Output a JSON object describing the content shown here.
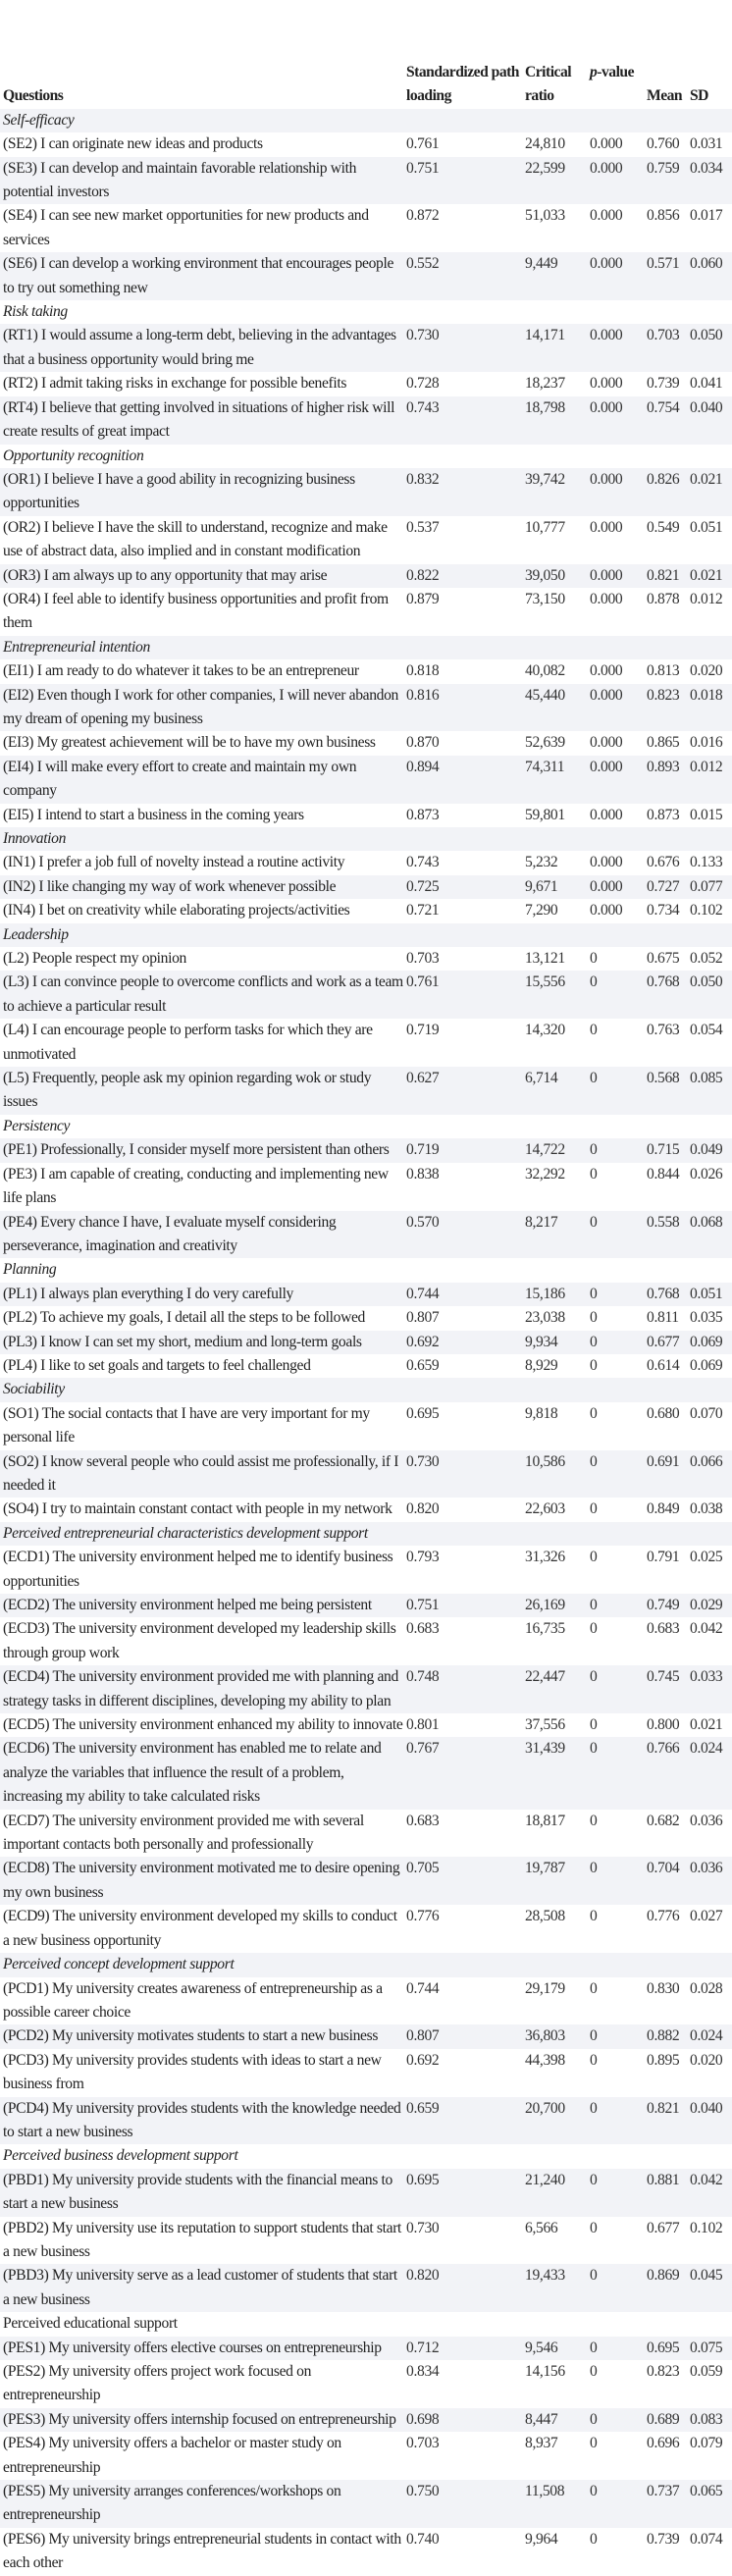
{
  "header": {
    "questions": "Questions",
    "loading": "Standardized path loading",
    "critical": "Critical ratio",
    "p_prefix": "p",
    "p_suffix": "-value",
    "mean": "Mean",
    "sd": "SD"
  },
  "sections": [
    {
      "title": "Self-efficacy",
      "italic": true,
      "items": [
        [
          "(SE2) I can originate new ideas and products",
          "0.761",
          "24,810",
          "0.000",
          "0.760",
          "0.031"
        ],
        [
          "(SE3) I can develop and maintain favorable relationship with potential investors",
          "0.751",
          "22,599",
          "0.000",
          "0.759",
          "0.034"
        ],
        [
          "(SE4) I can see new market opportunities for new products and services",
          "0.872",
          "51,033",
          "0.000",
          "0.856",
          "0.017"
        ],
        [
          "(SE6) I can develop a working environment that encourages people to try out something new",
          "0.552",
          "9,449",
          "0.000",
          "0.571",
          "0.060"
        ]
      ]
    },
    {
      "title": "Risk taking",
      "italic": true,
      "items": [
        [
          "(RT1) I would assume a long-term debt, believing in the advantages that a business opportunity would bring me",
          "0.730",
          "14,171",
          "0.000",
          "0.703",
          "0.050"
        ],
        [
          "(RT2) I admit taking risks in exchange for possible benefits",
          "0.728",
          "18,237",
          "0.000",
          "0.739",
          "0.041"
        ],
        [
          "(RT4) I believe that getting involved in situations of higher risk will create results of great impact",
          "0.743",
          "18,798",
          "0.000",
          "0.754",
          "0.040"
        ]
      ]
    },
    {
      "title": "Opportunity recognition",
      "italic": true,
      "items": [
        [
          "(OR1) I believe I have a good ability in recognizing business opportunities",
          "0.832",
          "39,742",
          "0.000",
          "0.826",
          "0.021"
        ],
        [
          "(OR2) I believe I have the skill to understand, recognize and make use of abstract data, also implied and in constant modification",
          "0.537",
          "10,777",
          "0.000",
          "0.549",
          "0.051"
        ],
        [
          "(OR3) I am always up to any opportunity that may arise",
          "0.822",
          "39,050",
          "0.000",
          "0.821",
          "0.021"
        ],
        [
          "(OR4) I feel able to identify business opportunities and profit from them",
          "0.879",
          "73,150",
          "0.000",
          "0.878",
          "0.012"
        ]
      ]
    },
    {
      "title": "Entrepreneurial intention",
      "italic": true,
      "items": [
        [
          "(EI1) I am ready to do whatever it takes to be an entrepreneur",
          "0.818",
          "40,082",
          "0.000",
          "0.813",
          "0.020"
        ],
        [
          "(EI2) Even though I work for other companies, I will never abandon my dream of opening my business",
          "0.816",
          "45,440",
          "0.000",
          "0.823",
          "0.018"
        ],
        [
          "(EI3) My greatest achievement will be to have my own business",
          "0.870",
          "52,639",
          "0.000",
          "0.865",
          "0.016"
        ],
        [
          "(EI4) I will make every effort to create and maintain my own company",
          "0.894",
          "74,311",
          "0.000",
          "0.893",
          "0.012"
        ],
        [
          "(EI5) I intend to start a business in the coming years",
          "0.873",
          "59,801",
          "0.000",
          "0.873",
          "0.015"
        ]
      ]
    },
    {
      "title": "Innovation",
      "italic": true,
      "items": [
        [
          "(IN1) I prefer a job full of novelty instead a routine activity",
          "0.743",
          "5,232",
          "0.000",
          "0.676",
          "0.133"
        ],
        [
          "(IN2) I like changing my way of work whenever possible",
          "0.725",
          "9,671",
          "0.000",
          "0.727",
          "0.077"
        ],
        [
          "(IN4) I bet on creativity while elaborating projects/activities",
          "0.721",
          "7,290",
          "0.000",
          "0.734",
          "0.102"
        ]
      ]
    },
    {
      "title": "Leadership",
      "italic": true,
      "items": [
        [
          "(L2) People respect my opinion",
          "0.703",
          "13,121",
          "0",
          "0.675",
          "0.052"
        ],
        [
          "(L3) I can convince people to overcome conflicts and work as a team to achieve a particular result",
          "0.761",
          "15,556",
          "0",
          "0.768",
          "0.050"
        ],
        [
          "(L4) I can encourage people to perform tasks for which they are unmotivated",
          "0.719",
          "14,320",
          "0",
          "0.763",
          "0.054"
        ],
        [
          "(L5) Frequently, people ask my opinion regarding wok or study issues",
          "0.627",
          "6,714",
          "0",
          "0.568",
          "0.085"
        ]
      ]
    },
    {
      "title": "Persistency",
      "italic": true,
      "items": [
        [
          "(PE1) Professionally, I consider myself more persistent than others",
          "0.719",
          "14,722",
          "0",
          "0.715",
          "0.049"
        ],
        [
          "(PE3) I am capable of creating, conducting and implementing new life plans",
          "0.838",
          "32,292",
          "0",
          "0.844",
          "0.026"
        ],
        [
          "(PE4) Every chance I have, I evaluate myself considering perseverance, imagination and creativity",
          "0.570",
          "8,217",
          "0",
          "0.558",
          "0.068"
        ]
      ]
    },
    {
      "title": "Planning",
      "italic": true,
      "items": [
        [
          "(PL1) I always plan everything I do very carefully",
          "0.744",
          "15,186",
          "0",
          "0.768",
          "0.051"
        ],
        [
          "(PL2) To achieve my goals, I detail all the steps to be followed",
          "0.807",
          "23,038",
          "0",
          "0.811",
          "0.035"
        ],
        [
          "(PL3) I know I can set my short, medium and long-term goals",
          "0.692",
          "9,934",
          "0",
          "0.677",
          "0.069"
        ],
        [
          "(PL4) I like to set goals and targets to feel challenged",
          "0.659",
          "8,929",
          "0",
          "0.614",
          "0.069"
        ]
      ]
    },
    {
      "title": "Sociability",
      "italic": true,
      "items": [
        [
          "(SO1) The social contacts that I have are very important for my personal life",
          "0.695",
          "9,818",
          "0",
          "0.680",
          "0.070"
        ],
        [
          "(SO2) I know several people who could assist me professionally, if I needed it",
          "0.730",
          "10,586",
          "0",
          "0.691",
          "0.066"
        ],
        [
          "(SO4) I try to maintain constant contact with people in my network",
          "0.820",
          "22,603",
          "0",
          "0.849",
          "0.038"
        ]
      ]
    },
    {
      "title": "Perceived entrepreneurial characteristics development support",
      "italic": true,
      "items": [
        [
          "(ECD1) The university environment helped me to identify business opportunities",
          "0.793",
          "31,326",
          "0",
          "0.791",
          "0.025"
        ],
        [
          "(ECD2) The university environment helped me being persistent",
          "0.751",
          "26,169",
          "0",
          "0.749",
          "0.029"
        ],
        [
          "(ECD3) The university environment developed my leadership skills through group work",
          "0.683",
          "16,735",
          "0",
          "0.683",
          "0.042"
        ],
        [
          "(ECD4) The university environment provided me with planning and strategy tasks in different disciplines, developing my ability to plan",
          "0.748",
          "22,447",
          "0",
          "0.745",
          "0.033"
        ],
        [
          "(ECD5) The university environment enhanced my ability to innovate",
          "0.801",
          "37,556",
          "0",
          "0.800",
          "0.021"
        ],
        [
          "(ECD6) The university environment has enabled me to relate and analyze the variables that influence the result of a problem, increasing my ability to take calculated risks",
          "0.767",
          "31,439",
          "0",
          "0.766",
          "0.024"
        ],
        [
          "(ECD7) The university environment provided me with several important contacts both personally and professionally",
          "0.683",
          "18,817",
          "0",
          "0.682",
          "0.036"
        ],
        [
          "(ECD8) The university environment motivated me to desire opening my own business",
          "0.705",
          "19,787",
          "0",
          "0.704",
          "0.036"
        ],
        [
          "(ECD9) The university environment developed my skills to conduct a new business opportunity",
          "0.776",
          "28,508",
          "0",
          "0.776",
          "0.027"
        ]
      ]
    },
    {
      "title": "Perceived concept development support",
      "italic": true,
      "items": [
        [
          "(PCD1) My university creates awareness of entrepreneurship as a possible career choice",
          "0.744",
          "29,179",
          "0",
          "0.830",
          "0.028"
        ],
        [
          "(PCD2) My university motivates students to start a new business",
          "0.807",
          "36,803",
          "0",
          "0.882",
          "0.024"
        ],
        [
          "(PCD3) My university provides students with ideas to start a new business from",
          "0.692",
          "44,398",
          "0",
          "0.895",
          "0.020"
        ],
        [
          "(PCD4) My university provides students with the knowledge needed to start a new business",
          "0.659",
          "20,700",
          "0",
          "0.821",
          "0.040"
        ]
      ]
    },
    {
      "title": "Perceived business development support",
      "italic": true,
      "items": [
        [
          "(PBD1) My university provide students with the financial means to start a new business",
          "0.695",
          "21,240",
          "0",
          "0.881",
          "0.042"
        ],
        [
          "(PBD2) My university use its reputation to support students that start a new business",
          "0.730",
          "6,566",
          "0",
          "0.677",
          "0.102"
        ],
        [
          "(PBD3) My university serve as a lead customer of students that start a new business",
          "0.820",
          "19,433",
          "0",
          "0.869",
          "0.045"
        ]
      ]
    },
    {
      "title": "Perceived educational support",
      "italic": false,
      "items": [
        [
          "(PES1) My university offers elective courses on entrepreneurship",
          "0.712",
          "9,546",
          "0",
          "0.695",
          "0.075"
        ],
        [
          "(PES2) My university offers project work focused on entrepreneurship",
          "0.834",
          "14,156",
          "0",
          "0.823",
          "0.059"
        ],
        [
          "(PES3) My university offers internship focused on entrepreneurship",
          "0.698",
          "8,447",
          "0",
          "0.689",
          "0.083"
        ],
        [
          "(PES4) My university offers a bachelor or master study on entrepreneurship",
          "0.703",
          "8,937",
          "0",
          "0.696",
          "0.079"
        ],
        [
          "(PES5) My university arranges conferences/workshops on entrepreneurship",
          "0.750",
          "11,508",
          "0",
          "0.737",
          "0.065"
        ],
        [
          "(PES6) My university brings entrepreneurial students in contact with each other",
          "0.740",
          "9,964",
          "0",
          "0.739",
          "0.074"
        ]
      ]
    }
  ]
}
